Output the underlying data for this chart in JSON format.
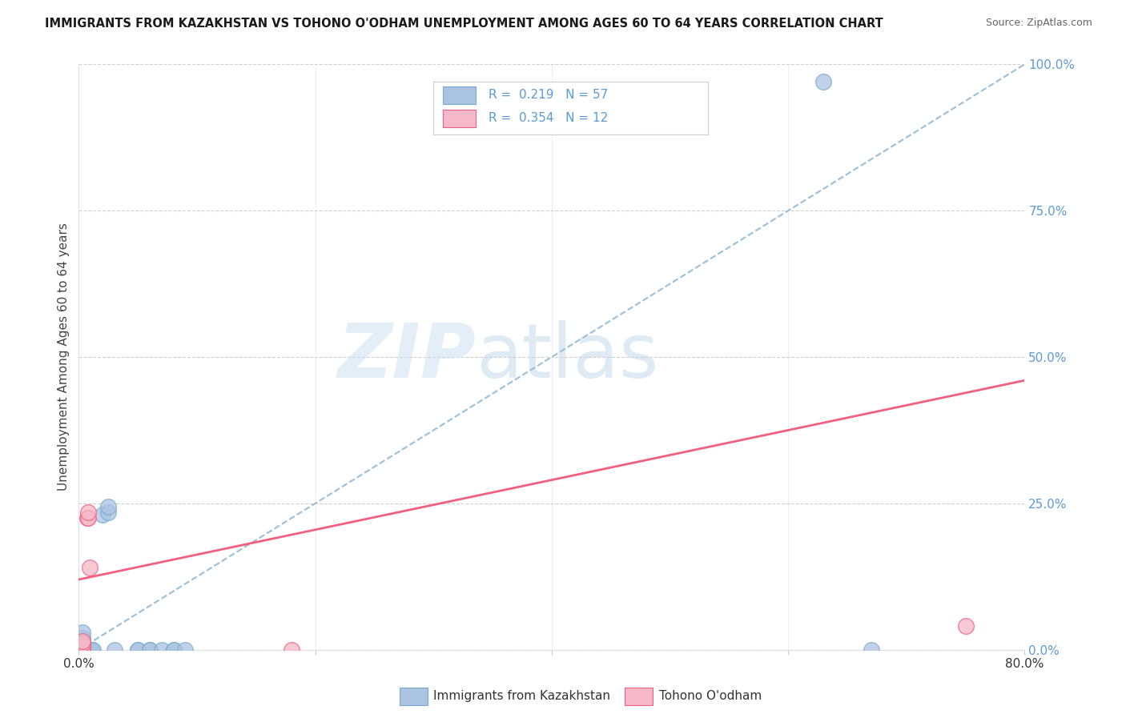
{
  "title": "IMMIGRANTS FROM KAZAKHSTAN VS TOHONO O'ODHAM UNEMPLOYMENT AMONG AGES 60 TO 64 YEARS CORRELATION CHART",
  "source": "Source: ZipAtlas.com",
  "ylabel": "Unemployment Among Ages 60 to 64 years",
  "xlim": [
    0,
    0.8
  ],
  "ylim": [
    0,
    1.0
  ],
  "ytick_vals": [
    0.0,
    0.25,
    0.5,
    0.75,
    1.0
  ],
  "ytick_labels": [
    "0.0%",
    "25.0%",
    "50.0%",
    "75.0%",
    "100.0%"
  ],
  "xtick_vals": [
    0.0,
    0.2,
    0.4,
    0.6,
    0.8
  ],
  "xtick_labels": [
    "0.0%",
    "",
    "",
    "",
    "80.0%"
  ],
  "legend_R1": "0.219",
  "legend_N1": "57",
  "legend_R2": "0.354",
  "legend_N2": "12",
  "color_blue": "#aac4e2",
  "color_pink": "#f5b8c8",
  "edge_blue": "#7aaad0",
  "edge_pink": "#f06080",
  "line_blue_color": "#9abfda",
  "line_pink_color": "#f06080",
  "watermark_color": "#d6eaf8",
  "blue_scatter_x": [
    0.003,
    0.003,
    0.003,
    0.003,
    0.003,
    0.003,
    0.003,
    0.003,
    0.003,
    0.003,
    0.003,
    0.003,
    0.003,
    0.003,
    0.003,
    0.003,
    0.003,
    0.003,
    0.003,
    0.003,
    0.003,
    0.003,
    0.003,
    0.003,
    0.003,
    0.003,
    0.003,
    0.004,
    0.004,
    0.004,
    0.005,
    0.005,
    0.005,
    0.006,
    0.007,
    0.007,
    0.008,
    0.008,
    0.009,
    0.01,
    0.01,
    0.011,
    0.012,
    0.02,
    0.025,
    0.025,
    0.03,
    0.05,
    0.05,
    0.06,
    0.06,
    0.07,
    0.08,
    0.08,
    0.09,
    0.63,
    0.67
  ],
  "blue_scatter_y": [
    0.0,
    0.0,
    0.0,
    0.0,
    0.0,
    0.0,
    0.0,
    0.0,
    0.0,
    0.0,
    0.0,
    0.0,
    0.0,
    0.0,
    0.0,
    0.0,
    0.0,
    0.0,
    0.0,
    0.0,
    0.0,
    0.0,
    0.005,
    0.01,
    0.015,
    0.02,
    0.03,
    0.0,
    0.0,
    0.0,
    0.0,
    0.0,
    0.0,
    0.0,
    0.0,
    0.0,
    0.0,
    0.0,
    0.0,
    0.0,
    0.0,
    0.0,
    0.0,
    0.23,
    0.235,
    0.245,
    0.0,
    0.0,
    0.0,
    0.0,
    0.0,
    0.0,
    0.0,
    0.0,
    0.0,
    0.97,
    0.0
  ],
  "pink_scatter_x": [
    0.003,
    0.003,
    0.003,
    0.003,
    0.003,
    0.003,
    0.007,
    0.008,
    0.008,
    0.009,
    0.18,
    0.75
  ],
  "pink_scatter_y": [
    0.0,
    0.0,
    0.0,
    0.005,
    0.01,
    0.015,
    0.225,
    0.225,
    0.235,
    0.14,
    0.0,
    0.04
  ],
  "blue_trend_x": [
    0.0,
    0.8
  ],
  "blue_trend_y": [
    0.0,
    1.0
  ],
  "pink_trend_x": [
    0.0,
    0.8
  ],
  "pink_trend_y": [
    0.12,
    0.46
  ],
  "background_color": "#ffffff",
  "grid_color": "#d0d0d0"
}
